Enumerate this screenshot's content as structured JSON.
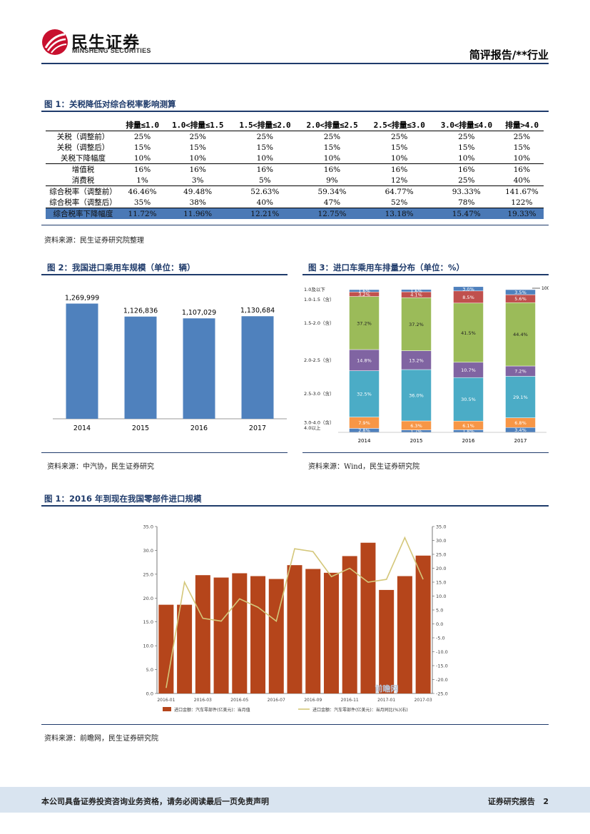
{
  "header": {
    "logo_cn": "民生证券",
    "logo_en": "MINSHENG SECURITIES",
    "report_type": "简评报告/**行业"
  },
  "section1": {
    "title": "图 1：关税降低对综合税率影响测算",
    "columns": [
      "",
      "排量≤1.0",
      "1.0<排量≤1.5",
      "1.5<排量≤2.0",
      "2.0<排量≤2.5",
      "2.5<排量≤3.0",
      "3.0<排量≤4.0",
      "排量>4.0"
    ],
    "rows": [
      {
        "label": "关税（调整前）",
        "cells": [
          "25%",
          "25%",
          "25%",
          "25%",
          "25%",
          "25%",
          "25%"
        ]
      },
      {
        "label": "关税（调整后）",
        "cells": [
          "15%",
          "15%",
          "15%",
          "15%",
          "15%",
          "15%",
          "15%"
        ]
      },
      {
        "label": "关税下降幅度",
        "cells": [
          "10%",
          "10%",
          "10%",
          "10%",
          "10%",
          "10%",
          "10%"
        ]
      },
      {
        "label": "增值税",
        "cells": [
          "16%",
          "16%",
          "16%",
          "16%",
          "16%",
          "16%",
          "16%"
        ]
      },
      {
        "label": "消费税",
        "cells": [
          "1%",
          "3%",
          "5%",
          "9%",
          "12%",
          "25%",
          "40%"
        ]
      },
      {
        "label": "综合税率（调整前）",
        "cells": [
          "46.46%",
          "49.48%",
          "52.63%",
          "59.34%",
          "64.77%",
          "93.33%",
          "141.67%"
        ]
      },
      {
        "label": "综合税率（调整后）",
        "cells": [
          "35%",
          "38%",
          "40%",
          "47%",
          "52%",
          "78%",
          "122%"
        ]
      },
      {
        "label": "综合税率下降幅度",
        "cells": [
          "11.72%",
          "11.96%",
          "12.21%",
          "12.75%",
          "13.18%",
          "15.47%",
          "19.33%"
        ]
      }
    ],
    "source": "资料来源：民生证券研究院整理"
  },
  "section2": {
    "title": "图 2：我国进口乘用车规模（单位：辆）",
    "source": "资料来源：中汽协，民生证券研究"
  },
  "section3": {
    "title": "图 3：进口车乘用车排量分布（单位：%）",
    "source": "资料来源：Wind，民生证券研究院"
  },
  "section4": {
    "title": "图 1：2016 年到现在我国零部件进口规模",
    "source": "资料来源：前瞻网，民生证券研究院",
    "watermark": "前瞻网"
  },
  "footer": {
    "disclaimer": "本公司具备证券投资咨询业务资格，请务必阅读最后一页免责声明",
    "label": "证券研究报告",
    "page": "2"
  },
  "colors": {
    "navy": "#1f3b6b",
    "bar_blue": "#4f81bd",
    "bar_red": "#b5451b",
    "line_yellow": "#d4c77a"
  },
  "chart_data": [
    {
      "type": "bar",
      "title": "我国进口乘用车规模（单位：辆）",
      "categories": [
        "2014",
        "2015",
        "2016",
        "2017"
      ],
      "values": [
        1269999,
        1126836,
        1107029,
        1130684
      ],
      "labels": [
        "1,269,999",
        "1,126,836",
        "1,107,029",
        "1,130,684"
      ],
      "ylim": [
        0,
        1400000
      ]
    },
    {
      "type": "bar",
      "stacked": true,
      "title": "进口车乘用车排量分布（单位：%）",
      "categories": [
        "2014",
        "2015",
        "2016",
        "2017"
      ],
      "segment_labels": [
        "1.0及以下",
        "1.0-1.5（含）",
        "1.5-2.0（含）",
        "2.0-2.5（含）",
        "2.5-3.0（含）",
        "3.0-4.0（含）",
        "4.0以上"
      ],
      "top_marker": "100",
      "series": [
        {
          "name": "4.0以上",
          "color": "#4f81bd",
          "values": [
            2.8,
            1.7,
            1.8,
            3.4
          ],
          "labels": [
            "2.8%",
            "1.7%",
            "1.8%",
            "3.4%"
          ]
        },
        {
          "name": "3.0-4.0",
          "color": "#f79646",
          "values": [
            7.9,
            6.3,
            6.1,
            6.8
          ],
          "labels": [
            "7.9%",
            "6.3%",
            "6.1%",
            "6.8%"
          ]
        },
        {
          "name": "2.5-3.0",
          "color": "#4bacc6",
          "values": [
            32.5,
            36.0,
            30.5,
            29.1
          ],
          "labels": [
            "32.5%",
            "36.0%",
            "30.5%",
            "29.1%"
          ]
        },
        {
          "name": "2.0-2.5",
          "color": "#8064a2",
          "values": [
            14.8,
            13.2,
            10.7,
            7.2
          ],
          "labels": [
            "14.8%",
            "13.2%",
            "10.7%",
            "7.2%"
          ]
        },
        {
          "name": "1.5-2.0",
          "color": "#9bbb59",
          "values": [
            37.2,
            37.2,
            41.5,
            44.4
          ],
          "labels": [
            "37.2%",
            "37.2%",
            "41.5%",
            "44.4%"
          ]
        },
        {
          "name": "1.0-1.5",
          "color": "#c0504d",
          "values": [
            3.2,
            4.1,
            8.5,
            5.6
          ],
          "labels": [
            "3.2%",
            "4.1%",
            "8.5%",
            "5.6%"
          ]
        },
        {
          "name": "1.0及以下",
          "color": "#4f81bd",
          "values": [
            1.6,
            1.6,
            3.0,
            3.5
          ],
          "labels": [
            "1.6%",
            "1.6%",
            "3.0%",
            "3.5%"
          ]
        }
      ]
    },
    {
      "type": "bar",
      "title": "2016年到现在我国零部件进口规模",
      "x": [
        "2016-01",
        "2016-02",
        "2016-03",
        "2016-04",
        "2016-05",
        "2016-06",
        "2016-07",
        "2016-08",
        "2016-09",
        "2016-10",
        "2016-11",
        "2016-12",
        "2017-01",
        "2017-02",
        "2017-03"
      ],
      "xticks": [
        "2016-01",
        "2016-03",
        "2016-05",
        "2016-07",
        "2016-09",
        "2016-11",
        "2017-01",
        "2017-03"
      ],
      "series": [
        {
          "name": "进口金额：汽车零部件(亿美元)：当月值",
          "type": "bar",
          "axis": "left",
          "values": [
            18.6,
            18.6,
            24.8,
            24.3,
            25.2,
            24.6,
            24.0,
            26.9,
            26.1,
            25.3,
            28.8,
            31.6,
            21.7,
            24.6,
            28.9
          ]
        },
        {
          "name": "进口金额：汽车零部件(亿美元)：当月同比(%)(右)",
          "type": "line",
          "axis": "right",
          "values": [
            -23.0,
            15.0,
            2.0,
            1.0,
            9.0,
            6.0,
            1.0,
            27.0,
            26.0,
            17.0,
            20.0,
            15.0,
            16.0,
            31.0,
            16.0
          ]
        }
      ],
      "ylim_left": [
        0,
        35
      ],
      "ylim_right": [
        -25,
        35
      ],
      "yticks_left": [
        "0.0",
        "5.0",
        "10.0",
        "15.0",
        "20.0",
        "25.0",
        "30.0",
        "35.0"
      ],
      "yticks_right": [
        "-25.0",
        "-20.0",
        "-15.0",
        "-10.0",
        "-5.0",
        "0.0",
        "5.0",
        "10.0",
        "15.0",
        "20.0",
        "25.0",
        "30.0",
        "35.0"
      ]
    }
  ]
}
